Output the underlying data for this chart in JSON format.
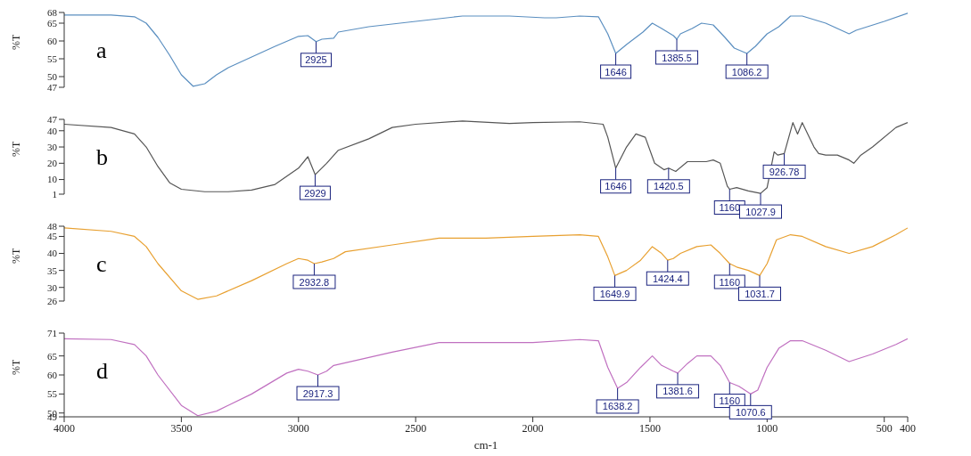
{
  "chart_data": [
    {
      "type": "line",
      "ylabel": "%T",
      "xlim": [
        4000,
        400
      ],
      "xticks": [
        4000,
        3500,
        3000,
        2500,
        2000,
        1500,
        1000,
        500,
        400
      ],
      "ylim": [
        47,
        68
      ],
      "yticks": [
        47,
        50,
        55,
        60,
        65,
        68
      ],
      "tick_labels": "y",
      "series": [
        {
          "color": "#5b8fc0",
          "x": [
            4000,
            3800,
            3700,
            3650,
            3600,
            3550,
            3500,
            3450,
            3400,
            3350,
            3300,
            3200,
            3100,
            3000,
            2960,
            2925,
            2900,
            2850,
            2830,
            2700,
            2500,
            2300,
            2100,
            1950,
            1900,
            1800,
            1720,
            1680,
            1646,
            1600,
            1530,
            1490,
            1450,
            1400,
            1385.5,
            1370,
            1320,
            1280,
            1230,
            1180,
            1140,
            1086.2,
            1050,
            1000,
            950,
            900,
            850,
            750,
            650,
            620,
            500,
            400
          ],
          "values": [
            67.3,
            67.3,
            66.8,
            65,
            61,
            56,
            50.5,
            47.3,
            48,
            50.5,
            52.5,
            55.5,
            58.5,
            61.3,
            61.5,
            59.8,
            60.5,
            60.8,
            62.5,
            64,
            65.5,
            67,
            67,
            66.5,
            66.5,
            67,
            66.8,
            62,
            56.5,
            59,
            62.5,
            65,
            63.5,
            61.5,
            60.5,
            62,
            63.5,
            65,
            64.5,
            61,
            58,
            56.5,
            58.5,
            62,
            64,
            67,
            67,
            65,
            62,
            63,
            65.5,
            67.8
          ]
        }
      ],
      "annotations": [
        "a",
        {
          "text": "2925",
          "x": 2925,
          "y": 59.8
        },
        {
          "text": "1646",
          "x": 1646,
          "y": 56.5
        },
        {
          "text": "1385.5",
          "x": 1385.5,
          "y": 60.5
        },
        {
          "text": "1086.2",
          "x": 1086.2,
          "y": 56.5
        }
      ]
    },
    {
      "type": "line",
      "ylabel": "%T",
      "xlim": [
        4000,
        400
      ],
      "xticks": [
        4000,
        3500,
        3000,
        2500,
        2000,
        1500,
        1000,
        500,
        400
      ],
      "ylim": [
        1,
        47
      ],
      "yticks": [
        1,
        10,
        20,
        30,
        40,
        47
      ],
      "tick_labels": "y",
      "series": [
        {
          "color": "#555555",
          "x": [
            4000,
            3800,
            3700,
            3650,
            3600,
            3550,
            3500,
            3400,
            3300,
            3200,
            3100,
            3000,
            2960,
            2929,
            2880,
            2830,
            2700,
            2600,
            2500,
            2300,
            2100,
            2000,
            1800,
            1700,
            1680,
            1646,
            1600,
            1560,
            1520,
            1480,
            1440,
            1420.5,
            1390,
            1340,
            1260,
            1230,
            1200,
            1170,
            1160,
            1130,
            1080,
            1027.9,
            1000,
            970,
            955,
            926.78,
            890,
            870,
            850,
            800,
            780,
            750,
            700,
            650,
            630,
            600,
            550,
            450,
            400
          ],
          "values": [
            44,
            42,
            38,
            30,
            18,
            8,
            4,
            2.5,
            2.5,
            3.5,
            7,
            17,
            24,
            13,
            20,
            28,
            35,
            42,
            44,
            46,
            44.5,
            45,
            45.5,
            44,
            36,
            17,
            30,
            38,
            36,
            20,
            16,
            17,
            15,
            21,
            21,
            22,
            20,
            6,
            4,
            5,
            3,
            1.5,
            5,
            27,
            25,
            26,
            45,
            38,
            45,
            30,
            26,
            25,
            25,
            22,
            20,
            25,
            30,
            42,
            45
          ]
        }
      ],
      "annotations": [
        "b",
        {
          "text": "2929",
          "x": 2929,
          "y": 13
        },
        {
          "text": "1646",
          "x": 1646,
          "y": 17
        },
        {
          "text": "1420.5",
          "x": 1420.5,
          "y": 17
        },
        {
          "text": "1160",
          "x": 1160,
          "y": 4
        },
        {
          "text": "1027.9",
          "x": 1027.9,
          "y": 1.5
        },
        {
          "text": "926.78",
          "x": 926.78,
          "y": 26
        }
      ]
    },
    {
      "type": "line",
      "ylabel": "%T",
      "xlim": [
        4000,
        400
      ],
      "xticks": [
        4000,
        3500,
        3000,
        2500,
        2000,
        1500,
        1000,
        500,
        400
      ],
      "ylim": [
        26,
        48
      ],
      "yticks": [
        26,
        30,
        35,
        40,
        45,
        48
      ],
      "tick_labels": "y",
      "series": [
        {
          "color": "#e8a030",
          "x": [
            4000,
            3800,
            3700,
            3650,
            3600,
            3500,
            3430,
            3350,
            3200,
            3050,
            3000,
            2960,
            2932.8,
            2900,
            2850,
            2800,
            2600,
            2400,
            2200,
            2000,
            1800,
            1720,
            1680,
            1649.9,
            1600,
            1540,
            1490,
            1450,
            1424.4,
            1400,
            1370,
            1300,
            1240,
            1200,
            1160,
            1130,
            1080,
            1031.7,
            1000,
            960,
            900,
            850,
            750,
            650,
            550,
            450,
            400
          ],
          "values": [
            47.5,
            46.5,
            45,
            42,
            37,
            29,
            26.5,
            27.5,
            32,
            37,
            38.5,
            38,
            37,
            37.5,
            38.5,
            40.5,
            42.5,
            44.5,
            44.5,
            45,
            45.5,
            45,
            39,
            33.5,
            35,
            38,
            42,
            40,
            38,
            38.5,
            40,
            42,
            42.5,
            40,
            37,
            36,
            35,
            33.5,
            37,
            44,
            45.5,
            45,
            42,
            40,
            42,
            45.5,
            47.5
          ]
        }
      ],
      "annotations": [
        "c",
        {
          "text": "2932.8",
          "x": 2932.8,
          "y": 37
        },
        {
          "text": "1649.9",
          "x": 1649.9,
          "y": 33.5
        },
        {
          "text": "1424.4",
          "x": 1424.4,
          "y": 38
        },
        {
          "text": "1160",
          "x": 1160,
          "y": 37
        },
        {
          "text": "1031.7",
          "x": 1031.7,
          "y": 33.5
        }
      ]
    },
    {
      "type": "line",
      "ylabel": "%T",
      "xlabel": "cm-1",
      "xlim": [
        4000,
        400
      ],
      "xticks": [
        4000,
        3500,
        3000,
        2500,
        2000,
        1500,
        1000,
        500,
        400
      ],
      "ylim": [
        49,
        71
      ],
      "yticks": [
        49,
        50,
        55,
        60,
        65,
        71
      ],
      "series": [
        {
          "color": "#c070c0",
          "x": [
            4000,
            3800,
            3700,
            3650,
            3600,
            3500,
            3430,
            3350,
            3200,
            3050,
            3000,
            2960,
            2917.3,
            2880,
            2850,
            2600,
            2400,
            2200,
            2000,
            1800,
            1720,
            1680,
            1638.2,
            1600,
            1540,
            1490,
            1450,
            1400,
            1381.6,
            1340,
            1300,
            1240,
            1200,
            1160,
            1120,
            1070.6,
            1040,
            1000,
            950,
            900,
            850,
            750,
            650,
            550,
            450,
            400
          ],
          "values": [
            69.5,
            69.3,
            68,
            65,
            60,
            52,
            49.3,
            50.5,
            55,
            60.5,
            61.5,
            61,
            60,
            61,
            62.5,
            66,
            68.5,
            68.5,
            68.5,
            69.3,
            69,
            62,
            56.5,
            58,
            62,
            65,
            62.5,
            61,
            60.5,
            63,
            65,
            65,
            62.5,
            58,
            57,
            55,
            56,
            62,
            67,
            69,
            69,
            66.5,
            63.5,
            65.5,
            68,
            69.5
          ]
        }
      ],
      "annotations": [
        "d",
        {
          "text": "2917.3",
          "x": 2917.3,
          "y": 60
        },
        {
          "text": "1638.2",
          "x": 1638.2,
          "y": 56.5
        },
        {
          "text": "1381.6",
          "x": 1381.6,
          "y": 60.5
        },
        {
          "text": "1160",
          "x": 1160,
          "y": 58
        },
        {
          "text": "1070.6",
          "x": 1070.6,
          "y": 55
        }
      ]
    }
  ]
}
